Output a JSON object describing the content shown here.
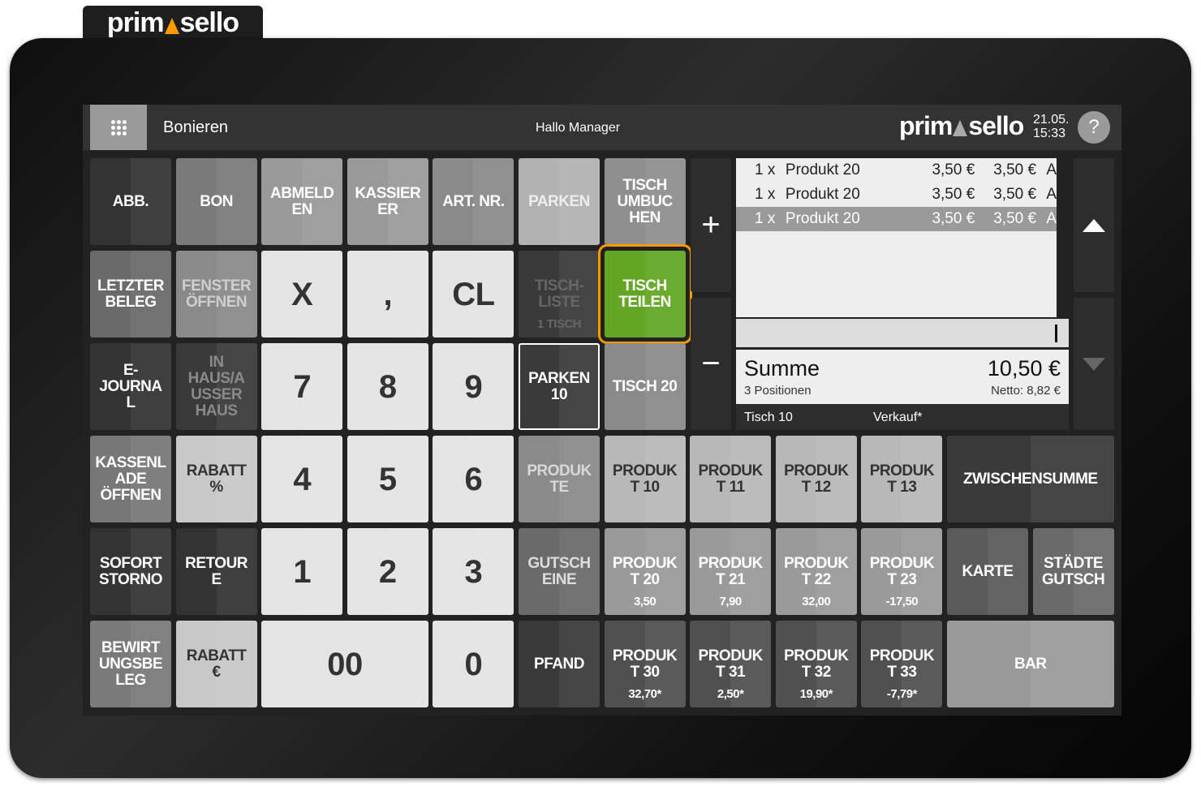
{
  "brand": {
    "logo_left": "prim",
    "logo_right": "sello",
    "accent": "#ff9900"
  },
  "header": {
    "title": "Bonieren",
    "greeting": "Hallo Manager",
    "date": "21.05.",
    "time": "15:33",
    "help": "?"
  },
  "buttons": [
    {
      "label": "ABB.",
      "bg": "#333333",
      "fg": "#ffffff"
    },
    {
      "label": "BON",
      "bg": "#7a7a7a",
      "fg": "#ffffff"
    },
    {
      "label": "ABMELD\nEN",
      "bg": "#9a9a9a",
      "fg": "#ffffff"
    },
    {
      "label": "KASSIER\nER",
      "bg": "#999999",
      "fg": "#ffffff"
    },
    {
      "label": "ART. NR.",
      "bg": "#8a8a8a",
      "fg": "#ffffff"
    },
    {
      "label": "PARKEN",
      "bg": "#b2b2b2",
      "fg": "#eeeeee"
    },
    {
      "label": "TISCH\nUMBUC\nHEN",
      "bg": "#8f8f8f",
      "fg": "#ffffff"
    },
    {
      "label": "LETZTER\nBELEG",
      "bg": "#6a6a6a",
      "fg": "#ffffff"
    },
    {
      "label": "FENSTER\nÖFFNEN",
      "bg": "#8a8a8a",
      "fg": "#cfcfcf"
    },
    {
      "label": "X",
      "bg": "#e4e4e4",
      "fg": "#333333",
      "num": true
    },
    {
      "label": ",",
      "bg": "#e4e4e4",
      "fg": "#333333",
      "num": true
    },
    {
      "label": "CL",
      "bg": "#e4e4e4",
      "fg": "#333333",
      "num": true
    },
    {
      "label": "TISCH-\nLISTE",
      "sub": "1 TISCH",
      "bg": "#3a3a3a",
      "fg": "#666666"
    },
    {
      "label": "TISCH\nTEILEN",
      "bg": "#62a623",
      "fg": "#ffffff",
      "highlight": "#ff9900"
    },
    {
      "label": "E-\nJOURNA\nL",
      "bg": "#333333",
      "fg": "#ffffff"
    },
    {
      "label": "IN\nHAUS/A\nUSSER\nHAUS",
      "bg": "#3a3a3a",
      "fg": "#8a8a8a"
    },
    {
      "label": "7",
      "bg": "#e4e4e4",
      "fg": "#333333",
      "num": true
    },
    {
      "label": "8",
      "bg": "#e4e4e4",
      "fg": "#333333",
      "num": true
    },
    {
      "label": "9",
      "bg": "#e4e4e4",
      "fg": "#333333",
      "num": true
    },
    {
      "label": "PARKEN\n10",
      "bg": "#3a3a3a",
      "fg": "#ffffff",
      "outline": "#ffffff"
    },
    {
      "label": "TISCH 20",
      "bg": "#8a8a8a",
      "fg": "#ffffff"
    },
    {
      "label": "KASSENL\nADE\nÖFFNEN",
      "bg": "#777777",
      "fg": "#ffffff"
    },
    {
      "label": "RABATT\n%",
      "bg": "#c8c8c8",
      "fg": "#333333"
    },
    {
      "label": "4",
      "bg": "#e4e4e4",
      "fg": "#333333",
      "num": true
    },
    {
      "label": "5",
      "bg": "#e4e4e4",
      "fg": "#333333",
      "num": true
    },
    {
      "label": "6",
      "bg": "#e4e4e4",
      "fg": "#333333",
      "num": true
    },
    {
      "label": "PRODUK\nTE",
      "bg": "#8a8a8a",
      "fg": "#d8d8d8"
    },
    {
      "label": "PRODUK\nT 10",
      "bg": "#b8b8b8",
      "fg": "#333333"
    },
    {
      "label": "PRODUK\nT 11",
      "bg": "#b8b8b8",
      "fg": "#333333"
    },
    {
      "label": "PRODUK\nT 12",
      "bg": "#b8b8b8",
      "fg": "#333333"
    },
    {
      "label": "PRODUK\nT 13",
      "bg": "#b8b8b8",
      "fg": "#333333"
    },
    {
      "label": "ZWISCHENSUMME",
      "bg": "#3a3a3a",
      "fg": "#ffffff"
    },
    {
      "label": "SOFORT\nSTORNO",
      "bg": "#333333",
      "fg": "#ffffff"
    },
    {
      "label": "RETOUR\nE",
      "bg": "#333333",
      "fg": "#ffffff"
    },
    {
      "label": "1",
      "bg": "#e4e4e4",
      "fg": "#333333",
      "num": true
    },
    {
      "label": "2",
      "bg": "#e4e4e4",
      "fg": "#333333",
      "num": true
    },
    {
      "label": "3",
      "bg": "#e4e4e4",
      "fg": "#333333",
      "num": true
    },
    {
      "label": "GUTSCH\nEINE",
      "bg": "#6a6a6a",
      "fg": "#dddddd"
    },
    {
      "label": "PRODUK\nT 20",
      "sub": "3,50",
      "bg": "#9a9a9a",
      "fg": "#ffffff"
    },
    {
      "label": "PRODUK\nT 21",
      "sub": "7,90",
      "bg": "#9a9a9a",
      "fg": "#ffffff"
    },
    {
      "label": "PRODUK\nT 22",
      "sub": "32,00",
      "bg": "#9a9a9a",
      "fg": "#ffffff"
    },
    {
      "label": "PRODUK\nT 23",
      "sub": "-17,50",
      "bg": "#9a9a9a",
      "fg": "#ffffff"
    },
    {
      "label": "KARTE",
      "bg": "#5a5a5a",
      "fg": "#ffffff"
    },
    {
      "label": "STÄDTE\nGUTSCH",
      "bg": "#6a6a6a",
      "fg": "#ffffff"
    },
    {
      "label": "BEWIRT\nUNGSBE\nLEG",
      "bg": "#7a7a7a",
      "fg": "#ffffff"
    },
    {
      "label": "RABATT\n€",
      "bg": "#c8c8c8",
      "fg": "#333333"
    },
    {
      "label": "00",
      "bg": "#e4e4e4",
      "fg": "#333333",
      "num": true
    },
    {
      "label": "0",
      "bg": "#e4e4e4",
      "fg": "#333333",
      "num": true
    },
    {
      "label": "PFAND",
      "bg": "#3a3a3a",
      "fg": "#ffffff"
    },
    {
      "label": "PRODUK\nT 30",
      "sub": "32,70*",
      "bg": "#505050",
      "fg": "#ffffff"
    },
    {
      "label": "PRODUK\nT 31",
      "sub": "2,50*",
      "bg": "#505050",
      "fg": "#ffffff"
    },
    {
      "label": "PRODUK\nT 32",
      "sub": "19,90*",
      "bg": "#505050",
      "fg": "#ffffff"
    },
    {
      "label": "PRODUK\nT 33",
      "sub": "-7,79*",
      "bg": "#505050",
      "fg": "#ffffff"
    },
    {
      "label": "BAR",
      "bg": "#9a9a9a",
      "fg": "#ffffff"
    }
  ],
  "qty": {
    "plus": "+",
    "minus": "−"
  },
  "receipt": {
    "items": [
      {
        "qty": "1 x",
        "name": "Produkt 20",
        "price": "3,50 €",
        "total": "3,50 €",
        "vat": "A"
      },
      {
        "qty": "1 x",
        "name": "Produkt 20",
        "price": "3,50 €",
        "total": "3,50 €",
        "vat": "A"
      },
      {
        "qty": "1 x",
        "name": "Produkt 20",
        "price": "3,50 €",
        "total": "3,50 €",
        "vat": "A",
        "selected": true
      }
    ],
    "input_value": "",
    "sum_label": "Summe",
    "sum_value": "10,50 €",
    "positions": "3 Positionen",
    "netto": "Netto: 8,82 €",
    "table": "Tisch 10",
    "mode": "Verkauf*"
  }
}
